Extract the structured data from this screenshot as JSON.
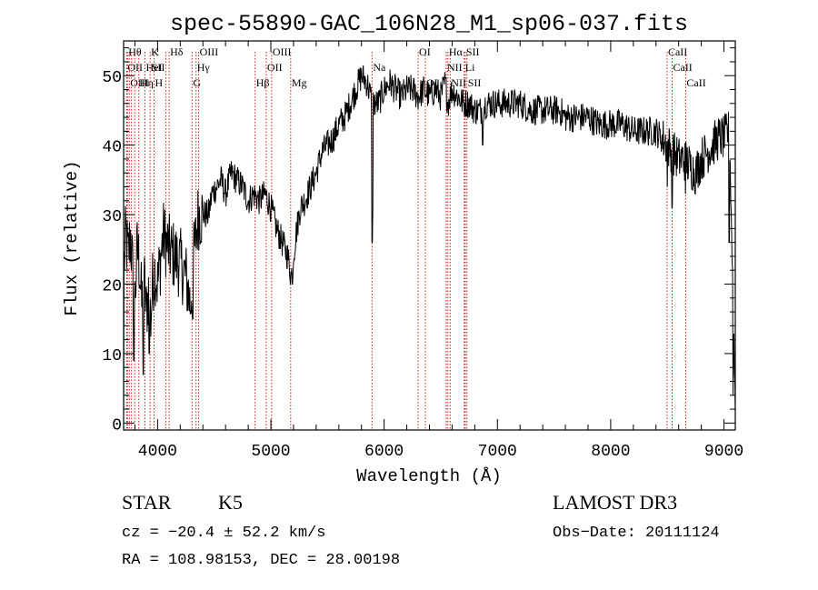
{
  "chart_data": {
    "type": "line",
    "title": "spec-55890-GAC_106N28_M1_sp06-037.fits",
    "xlabel": "Wavelength (Å)",
    "ylabel": "Flux (relative)",
    "xlim": [
      3700,
      9100
    ],
    "ylim": [
      -1,
      55
    ],
    "x_ticks": [
      4000,
      5000,
      6000,
      7000,
      8000,
      9000
    ],
    "x_tick_labels": [
      "4000",
      "5000",
      "6000",
      "7000",
      "8000",
      "9000"
    ],
    "y_ticks": [
      0,
      10,
      20,
      30,
      40,
      50
    ],
    "y_tick_labels": [
      "0",
      "10",
      "20",
      "30",
      "40",
      "50"
    ],
    "x_minor_step": 200,
    "y_minor_step": 2,
    "grid": false,
    "series": [
      {
        "noise": 2.2,
        "spikes": [
          [
            3700,
            1
          ],
          [
            3790,
            9
          ],
          [
            3875,
            7
          ],
          [
            3925,
            10
          ],
          [
            4310,
            15
          ],
          [
            5190,
            20
          ],
          [
            5893,
            26
          ],
          [
            5897,
            31
          ],
          [
            6870,
            40
          ],
          [
            8500,
            34
          ],
          [
            8542,
            31
          ],
          [
            8660,
            33
          ],
          [
            9045,
            26
          ],
          [
            9080,
            4
          ]
        ],
        "points": [
          [
            3700,
            22
          ],
          [
            3720,
            27
          ],
          [
            3740,
            24
          ],
          [
            3760,
            27
          ],
          [
            3780,
            22
          ],
          [
            3800,
            18
          ],
          [
            3820,
            25
          ],
          [
            3840,
            23
          ],
          [
            3860,
            17
          ],
          [
            3880,
            21
          ],
          [
            3900,
            16
          ],
          [
            3920,
            19
          ],
          [
            3940,
            15
          ],
          [
            3960,
            21
          ],
          [
            3980,
            22
          ],
          [
            4000,
            20
          ],
          [
            4050,
            27
          ],
          [
            4100,
            25
          ],
          [
            4150,
            24
          ],
          [
            4200,
            23
          ],
          [
            4250,
            21
          ],
          [
            4290,
            17
          ],
          [
            4320,
            24
          ],
          [
            4360,
            30
          ],
          [
            4400,
            30
          ],
          [
            4450,
            30
          ],
          [
            4480,
            33
          ],
          [
            4520,
            34
          ],
          [
            4560,
            35
          ],
          [
            4600,
            33
          ],
          [
            4650,
            36
          ],
          [
            4700,
            35
          ],
          [
            4750,
            34
          ],
          [
            4800,
            32
          ],
          [
            4850,
            33
          ],
          [
            4900,
            32
          ],
          [
            4950,
            33
          ],
          [
            5000,
            31
          ],
          [
            5050,
            28
          ],
          [
            5100,
            26
          ],
          [
            5150,
            24
          ],
          [
            5180,
            21
          ],
          [
            5220,
            27
          ],
          [
            5260,
            31
          ],
          [
            5300,
            32
          ],
          [
            5350,
            34
          ],
          [
            5400,
            36
          ],
          [
            5450,
            39
          ],
          [
            5500,
            40
          ],
          [
            5550,
            41
          ],
          [
            5600,
            43
          ],
          [
            5650,
            44
          ],
          [
            5700,
            46
          ],
          [
            5750,
            48
          ],
          [
            5800,
            50
          ],
          [
            5850,
            49
          ],
          [
            5880,
            47
          ],
          [
            5910,
            46
          ],
          [
            5950,
            46
          ],
          [
            6000,
            48
          ],
          [
            6050,
            49
          ],
          [
            6100,
            48
          ],
          [
            6150,
            47
          ],
          [
            6200,
            48
          ],
          [
            6250,
            48
          ],
          [
            6300,
            47
          ],
          [
            6350,
            48
          ],
          [
            6400,
            47
          ],
          [
            6450,
            48
          ],
          [
            6500,
            47
          ],
          [
            6540,
            49
          ],
          [
            6563,
            46
          ],
          [
            6600,
            48
          ],
          [
            6650,
            47
          ],
          [
            6700,
            46
          ],
          [
            6750,
            46
          ],
          [
            6800,
            45
          ],
          [
            6850,
            45
          ],
          [
            6900,
            46
          ],
          [
            7000,
            46
          ],
          [
            7100,
            46
          ],
          [
            7200,
            46
          ],
          [
            7300,
            45
          ],
          [
            7400,
            45
          ],
          [
            7500,
            45
          ],
          [
            7550,
            45
          ],
          [
            7600,
            44
          ],
          [
            7650,
            44
          ],
          [
            7700,
            44
          ],
          [
            7800,
            44
          ],
          [
            7900,
            43
          ],
          [
            8000,
            43
          ],
          [
            8100,
            43
          ],
          [
            8200,
            42
          ],
          [
            8300,
            42
          ],
          [
            8400,
            42
          ],
          [
            8450,
            41
          ],
          [
            8500,
            40
          ],
          [
            8550,
            39
          ],
          [
            8600,
            38
          ],
          [
            8650,
            38
          ],
          [
            8700,
            37
          ],
          [
            8750,
            36
          ],
          [
            8800,
            38
          ],
          [
            8850,
            39
          ],
          [
            8900,
            40
          ],
          [
            8950,
            41
          ],
          [
            9000,
            41
          ],
          [
            9050,
            42
          ],
          [
            9100,
            2
          ]
        ]
      }
    ],
    "line_marks": [
      {
        "x": 3734,
        "row": 0,
        "side": "right",
        "label": "Hθ"
      },
      {
        "x": 3727,
        "row": 1,
        "side": "right",
        "label": "OII"
      },
      {
        "x": 3750,
        "row": 2,
        "side": "right",
        "label": "OIII"
      },
      {
        "x": 3770,
        "row": 2,
        "side": "left",
        "label": ""
      },
      {
        "x": 3798,
        "row": 2,
        "side": "left",
        "label": ""
      },
      {
        "x": 3835,
        "row": 2,
        "side": "right",
        "label": "Hη"
      },
      {
        "x": 3889,
        "row": 1,
        "side": "right",
        "label": "HeI"
      },
      {
        "x": 3934,
        "row": 0,
        "side": "right",
        "label": "K"
      },
      {
        "x": 3969,
        "row": 2,
        "side": "right",
        "label": "H"
      },
      {
        "x": 4072,
        "row": 1,
        "side": "left",
        "label": "SII"
      },
      {
        "x": 4102,
        "row": 0,
        "side": "right",
        "label": "Hδ"
      },
      {
        "x": 4304,
        "row": 2,
        "side": "right",
        "label": "G"
      },
      {
        "x": 4340,
        "row": 1,
        "side": "right",
        "label": "Hγ"
      },
      {
        "x": 4363,
        "row": 0,
        "side": "right",
        "label": "OIII"
      },
      {
        "x": 4861,
        "row": 2,
        "side": "right",
        "label": "Hβ"
      },
      {
        "x": 4959,
        "row": 1,
        "side": "right",
        "label": "OII"
      },
      {
        "x": 5007,
        "row": 0,
        "side": "right",
        "label": "OIII"
      },
      {
        "x": 5175,
        "row": 2,
        "side": "right",
        "label": "Mg"
      },
      {
        "x": 5893,
        "row": 1,
        "side": "right",
        "label": "Na"
      },
      {
        "x": 6300,
        "row": 0,
        "side": "right",
        "label": "OI"
      },
      {
        "x": 6364,
        "row": 2,
        "side": "right",
        "label": "OI"
      },
      {
        "x": 6548,
        "row": 1,
        "side": "right",
        "label": "NII"
      },
      {
        "x": 6563,
        "row": 0,
        "side": "right",
        "label": "Hα"
      },
      {
        "x": 6583,
        "row": 2,
        "side": "right",
        "label": "NII"
      },
      {
        "x": 6707,
        "row": 1,
        "side": "right",
        "label": "Li"
      },
      {
        "x": 6716,
        "row": 0,
        "side": "right",
        "label": "SII"
      },
      {
        "x": 6731,
        "row": 2,
        "side": "right",
        "label": "SII"
      },
      {
        "x": 8498,
        "row": 0,
        "side": "right",
        "label": "CaII"
      },
      {
        "x": 8542,
        "row": 1,
        "side": "right",
        "label": "CaII"
      },
      {
        "x": 8662,
        "row": 2,
        "side": "right",
        "label": "CaII"
      }
    ]
  },
  "info": {
    "object_class": "STAR",
    "subclass": "K5",
    "survey": "LAMOST DR3",
    "redshift": "cz = −20.4 ± 52.2 km/s",
    "obs_date": "Obs−Date: 20111124",
    "coords": "RA = 108.98153, DEC =  28.00198"
  },
  "colors": {
    "axis": "#000000",
    "spectrum": "#000000",
    "line_marker": "#cc0000"
  }
}
